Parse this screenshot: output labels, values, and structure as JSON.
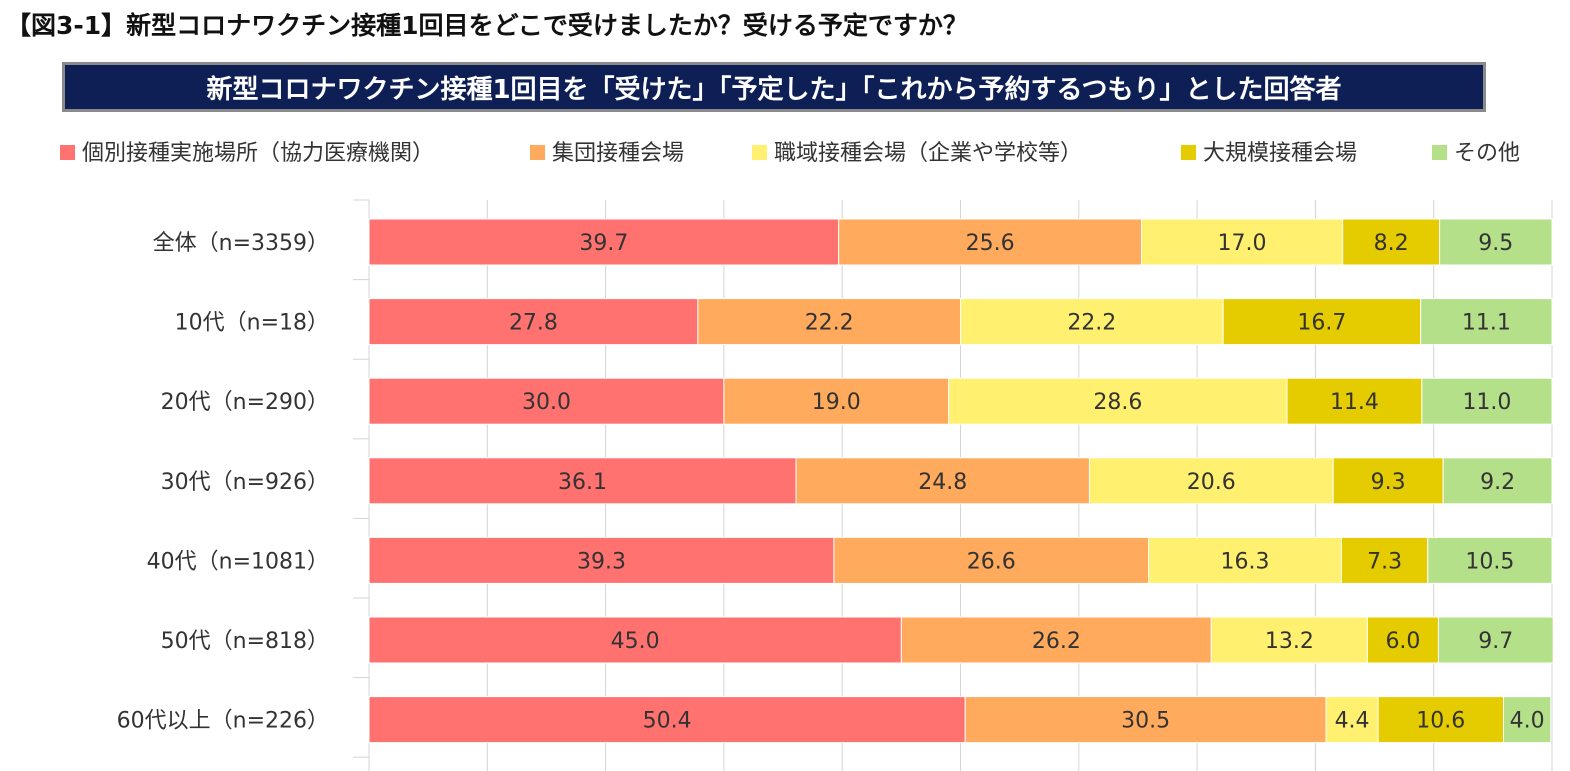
{
  "title": "【図3-1】新型コロナワクチン接種1回目をどこで受けましたか？受ける予定ですか？",
  "subtitle": "新型コロナワクチン接種1回目を「受けた」「予定した」「これから予約するつもり」とした回答者",
  "chart_data": {
    "type": "bar",
    "orientation": "horizontal",
    "stacked": true,
    "percent": true,
    "xlim": [
      0,
      100
    ],
    "grid": true,
    "legend_position": "top",
    "categories": [
      "全体（n=3359）",
      "10代（n=18）",
      "20代（n=290）",
      "30代（n=926）",
      "40代（n=1081）",
      "50代（n=818）",
      "60代以上（n=226）"
    ],
    "series": [
      {
        "name": "個別接種実施場所（協力医療機関）",
        "color": "#ff7270",
        "values": [
          39.7,
          27.8,
          30.0,
          36.1,
          39.3,
          45.0,
          50.4
        ]
      },
      {
        "name": "集団接種会場",
        "color": "#ffaa5c",
        "values": [
          25.6,
          22.2,
          19.0,
          24.8,
          26.6,
          26.2,
          30.5
        ]
      },
      {
        "name": "職域接種会場（企業や学校等）",
        "color": "#fff070",
        "values": [
          17.0,
          22.2,
          28.6,
          20.6,
          16.3,
          13.2,
          4.4
        ]
      },
      {
        "name": "大規模接種会場",
        "color": "#e5cc00",
        "values": [
          8.2,
          16.7,
          11.4,
          9.3,
          7.3,
          6.0,
          10.6
        ]
      },
      {
        "name": "その他",
        "color": "#b5e08a",
        "values": [
          9.5,
          11.1,
          11.0,
          9.2,
          10.5,
          9.7,
          4.0
        ]
      }
    ]
  }
}
